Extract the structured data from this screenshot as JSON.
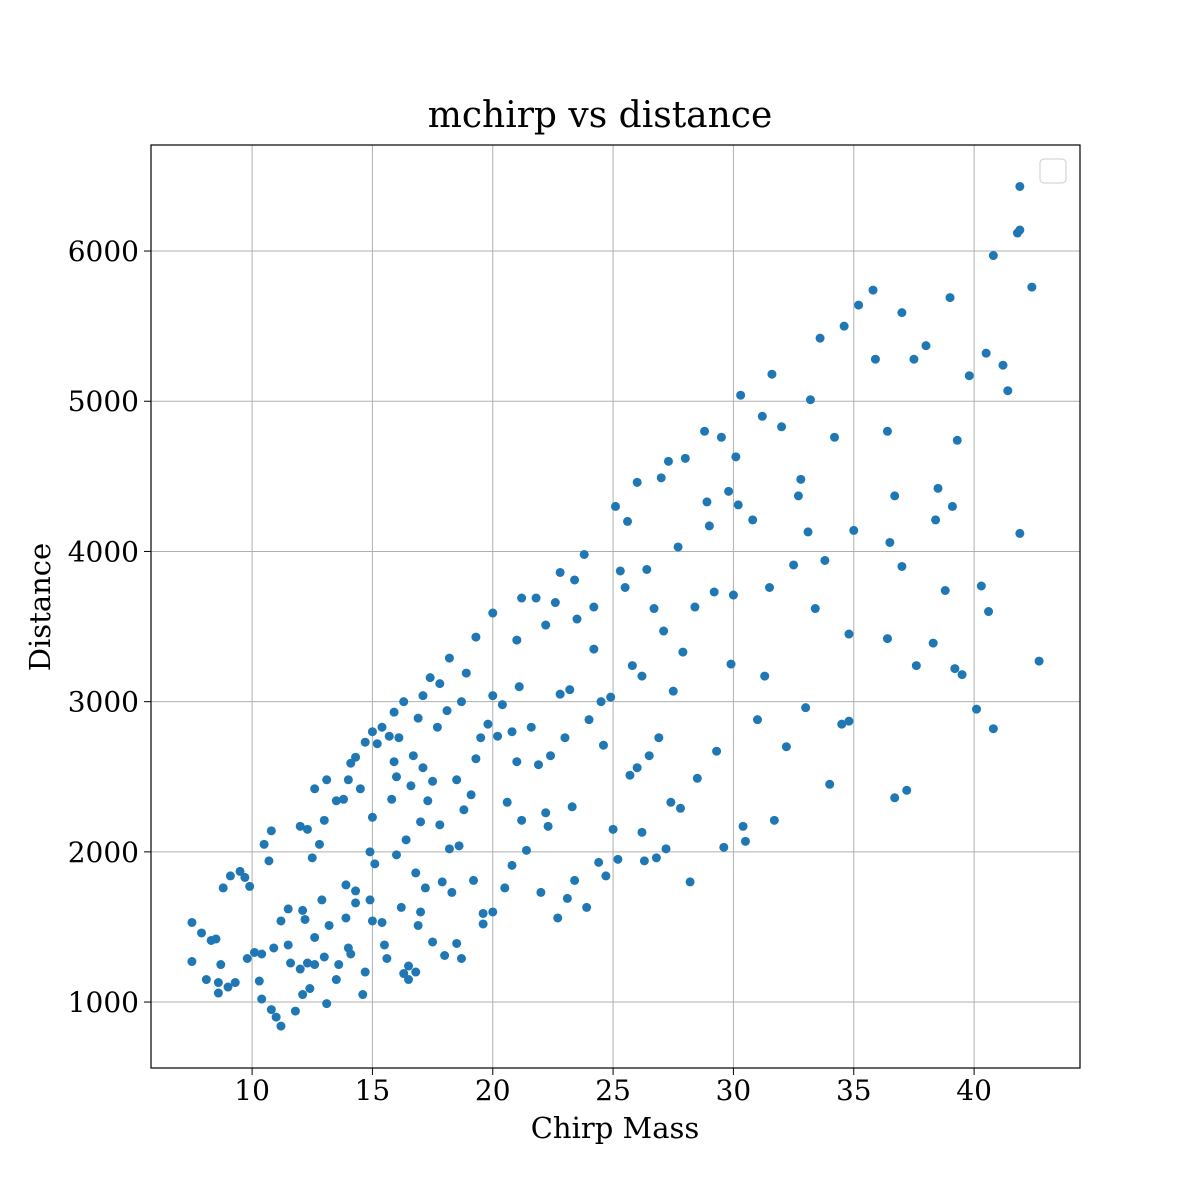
{
  "chart_data": {
    "type": "scatter",
    "title": "mchirp vs distance",
    "x_label": "Chirp Mass",
    "y_label": "Distance",
    "color": "#1f77b4",
    "grid": true,
    "xlim": [
      5.8,
      44.4
    ],
    "ylim": [
      561,
      6706
    ],
    "xticks": [
      10,
      15,
      20,
      25,
      30,
      35,
      40
    ],
    "yticks": [
      1000,
      2000,
      3000,
      4000,
      5000,
      6000
    ],
    "x": [
      7.5,
      7.5,
      7.9,
      8.1,
      8.3,
      8.5,
      8.6,
      8.6,
      8.7,
      8.8,
      9.0,
      9.1,
      9.3,
      9.5,
      9.7,
      9.8,
      9.9,
      10.1,
      10.3,
      10.4,
      10.4,
      10.5,
      10.7,
      10.8,
      10.8,
      10.9,
      11.0,
      11.2,
      11.2,
      11.5,
      11.5,
      11.6,
      11.8,
      12.0,
      12.0,
      12.1,
      12.1,
      12.2,
      12.3,
      12.3,
      12.4,
      12.5,
      12.6,
      12.6,
      12.8,
      12.9,
      13.0,
      13.1,
      13.0,
      13.1,
      13.2,
      13.5,
      13.5,
      13.8,
      13.9,
      13.9,
      14.0,
      14.0,
      14.1,
      14.1,
      14.3,
      14.3,
      14.3,
      14.5,
      14.6,
      14.7,
      14.7,
      14.9,
      15.0,
      15.0,
      15.0,
      15.1,
      15.2,
      15.4,
      15.4,
      15.5,
      15.6,
      15.7,
      15.8,
      15.9,
      15.9,
      16.0,
      16.1,
      16.2,
      16.3,
      16.3,
      16.4,
      16.5,
      16.5,
      16.6,
      16.7,
      16.8,
      16.8,
      16.9,
      17.0,
      17.0,
      17.1,
      17.1,
      17.2,
      17.3,
      17.4,
      17.5,
      17.7,
      17.8,
      17.8,
      17.9,
      18.0,
      18.1,
      18.2,
      18.2,
      18.3,
      18.5,
      18.5,
      18.7,
      18.7,
      18.8,
      18.9,
      19.1,
      19.2,
      19.3,
      19.3,
      19.5,
      19.6,
      19.8,
      20.0,
      20.0,
      20.0,
      20.2,
      20.4,
      20.5,
      20.6,
      20.8,
      21.0,
      21.0,
      21.1,
      21.2,
      21.4,
      21.6,
      21.8,
      21.9,
      22.0,
      22.2,
      22.3,
      22.4,
      22.6,
      22.7,
      22.8,
      22.8,
      23.0,
      23.1,
      23.2,
      23.3,
      23.4,
      23.5,
      23.8,
      23.9,
      24.0,
      24.2,
      24.4,
      24.5,
      24.6,
      24.7,
      24.9,
      25.0,
      25.1,
      25.2,
      25.3,
      25.5,
      25.6,
      25.8,
      26.0,
      26.0,
      26.2,
      26.3,
      26.4,
      26.5,
      26.7,
      26.8,
      27.0,
      27.1,
      27.2,
      27.3,
      27.4,
      27.5,
      27.7,
      27.8,
      28.0,
      28.2,
      28.4,
      28.5,
      28.8,
      29.0,
      29.2,
      29.3,
      29.5,
      29.6,
      29.8,
      30.0,
      30.1,
      30.3,
      30.4,
      30.5,
      30.8,
      31.0,
      31.2,
      31.3,
      31.5,
      31.6,
      31.7,
      32.0,
      32.2,
      32.5,
      32.8,
      33.0,
      33.2,
      33.4,
      33.6,
      33.8,
      34.0,
      34.2,
      34.5,
      34.6,
      34.8,
      35.0,
      35.2,
      35.8,
      35.9,
      36.4,
      36.5,
      36.7,
      36.7,
      37.0,
      37.2,
      37.5,
      37.6,
      38.0,
      38.3,
      38.5,
      38.8,
      39.0,
      39.2,
      39.3,
      39.5,
      39.8,
      40.1,
      40.3,
      40.5,
      40.6,
      40.8,
      40.8,
      41.2,
      41.4,
      41.8,
      41.9,
      41.9,
      42.4,
      42.7,
      41.9,
      39.1,
      38.4,
      37.0,
      36.4,
      34.8,
      33.1,
      32.7,
      30.2,
      29.9,
      28.9,
      27.9,
      26.9,
      26.2,
      25.7,
      24.2,
      23.4,
      22.2,
      21.2,
      20.8,
      19.6,
      18.6,
      17.5,
      16.9,
      16.0,
      14.9,
      13.6,
      12.6
    ],
    "values": [
      1530,
      1270,
      1460,
      1150,
      1410,
      1420,
      1130,
      1060,
      1250,
      1760,
      1100,
      1840,
      1130,
      1870,
      1830,
      1290,
      1770,
      1330,
      1140,
      1020,
      1320,
      2050,
      1940,
      2140,
      950,
      1360,
      900,
      840,
      1540,
      1620,
      1380,
      1260,
      940,
      1220,
      2170,
      1050,
      1610,
      1550,
      2150,
      1260,
      1090,
      1960,
      2420,
      1430,
      2050,
      1680,
      2210,
      2480,
      1300,
      990,
      1510,
      2340,
      1150,
      2350,
      1780,
      1560,
      2480,
      1360,
      2590,
      1320,
      2630,
      1740,
      1660,
      2420,
      1050,
      2730,
      1200,
      2000,
      2800,
      2230,
      1540,
      1920,
      2720,
      2830,
      1530,
      1380,
      1290,
      2770,
      2350,
      2600,
      2930,
      2500,
      2760,
      1630,
      3000,
      1190,
      2080,
      1240,
      1150,
      2440,
      2640,
      1200,
      1860,
      2890,
      2200,
      1600,
      2560,
      3040,
      1760,
      2340,
      3160,
      1400,
      2830,
      3120,
      2180,
      1800,
      1310,
      2940,
      3290,
      2020,
      1730,
      2480,
      1390,
      3000,
      1290,
      2280,
      3190,
      2380,
      1810,
      3430,
      2620,
      2760,
      1590,
      2850,
      3590,
      3040,
      1600,
      2770,
      2980,
      1760,
      2330,
      2800,
      3410,
      2600,
      3100,
      3690,
      2010,
      2830,
      3690,
      2580,
      1730,
      3510,
      2170,
      2640,
      3660,
      1560,
      3860,
      3050,
      2760,
      1690,
      3080,
      2300,
      3810,
      3550,
      3980,
      1630,
      2880,
      3630,
      1930,
      3000,
      2710,
      1840,
      3030,
      2150,
      4300,
      1950,
      3870,
      3760,
      4200,
      3240,
      2560,
      4460,
      3170,
      1940,
      3880,
      2640,
      3620,
      1960,
      4490,
      3470,
      2020,
      4600,
      2330,
      3070,
      4030,
      2290,
      4620,
      1800,
      3630,
      2490,
      4800,
      4170,
      3730,
      2670,
      4760,
      2030,
      4400,
      3710,
      4630,
      5040,
      2170,
      2070,
      4210,
      2880,
      4900,
      3170,
      3760,
      5180,
      2210,
      4830,
      2700,
      3910,
      4480,
      2960,
      5010,
      3620,
      5420,
      3940,
      2450,
      4760,
      2850,
      5500,
      3450,
      4140,
      5640,
      5740,
      5280,
      4800,
      4060,
      2360,
      4370,
      5590,
      2410,
      5280,
      3240,
      5370,
      3390,
      4420,
      3740,
      5690,
      3220,
      4740,
      3180,
      5170,
      2950,
      3770,
      5320,
      3600,
      2820,
      5970,
      5240,
      5070,
      6120,
      4120,
      6430,
      5760,
      3270,
      6140,
      4300,
      4210,
      3900,
      3420,
      2870,
      4130,
      4370,
      4310,
      3250,
      4330,
      3330,
      2760,
      2130,
      2510,
      3350,
      1810,
      2260,
      2210,
      1910,
      1520,
      2040,
      2470,
      1510,
      1980,
      1680,
      1250,
      1250
    ]
  }
}
